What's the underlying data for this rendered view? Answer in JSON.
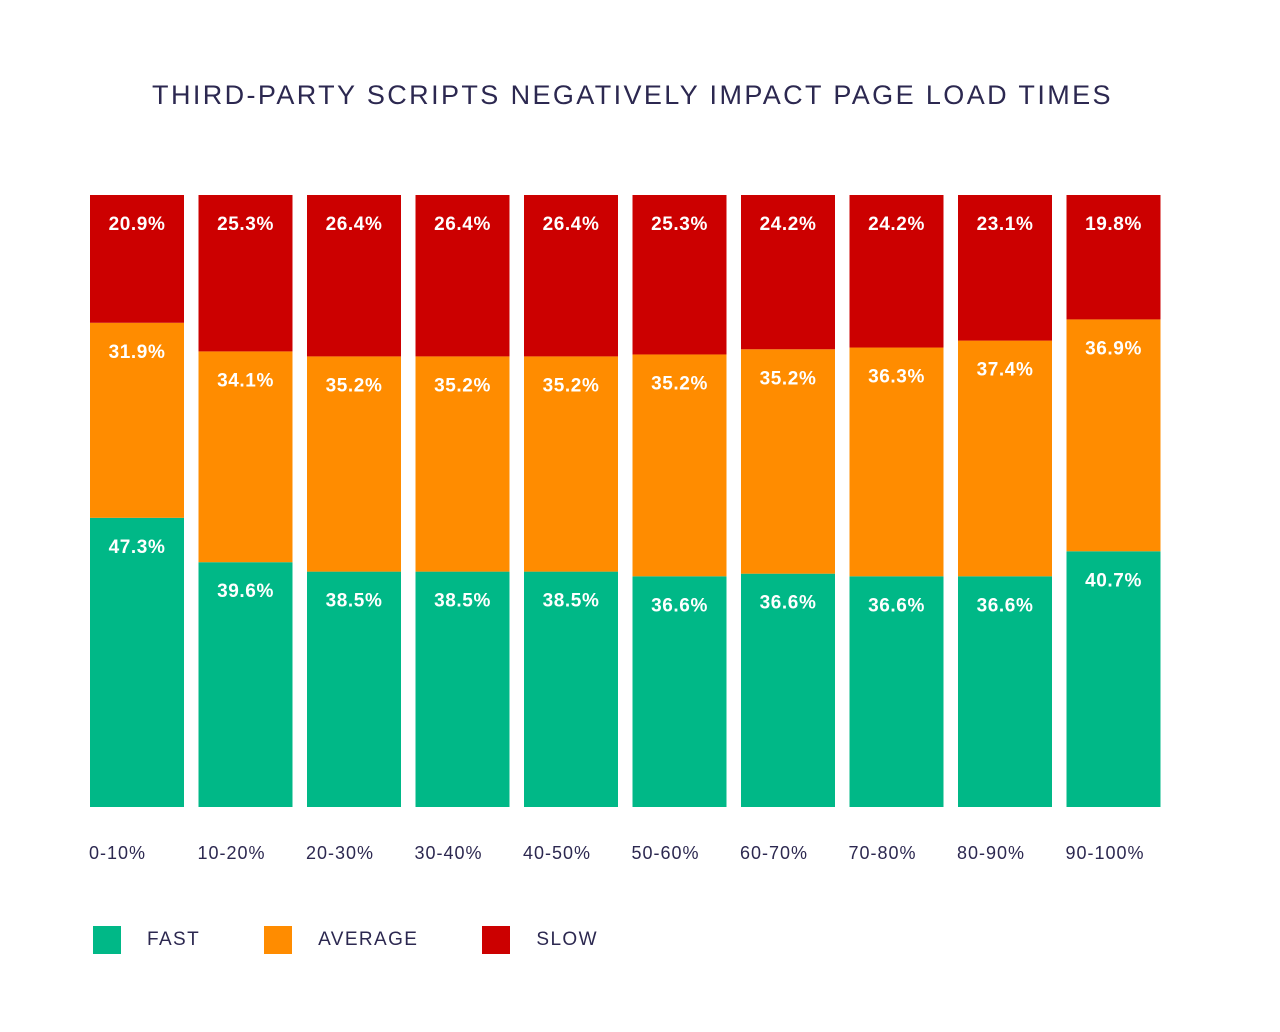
{
  "chart_data": {
    "type": "bar",
    "stacked": true,
    "title": "THIRD-PARTY SCRIPTS NEGATIVELY IMPACT PAGE LOAD TIMES",
    "xlabel": "",
    "ylabel": "",
    "ylim": [
      0,
      100
    ],
    "grid": false,
    "legend_position": "bottom-left",
    "categories": [
      "0-10%",
      "10-20%",
      "20-30%",
      "30-40%",
      "40-50%",
      "50-60%",
      "60-70%",
      "70-80%",
      "80-90%",
      "90-100%"
    ],
    "series": [
      {
        "name": "FAST",
        "color": "#00b887",
        "values": [
          47.3,
          39.6,
          38.5,
          38.5,
          38.5,
          36.6,
          36.6,
          36.6,
          36.6,
          40.7
        ],
        "labels": [
          "47.3%",
          "39.6%",
          "38.5%",
          "38.5%",
          "38.5%",
          "36.6%",
          "36.6%",
          "36.6%",
          "36.6%",
          "40.7%"
        ]
      },
      {
        "name": "AVERAGE",
        "color": "#ff8c00",
        "values": [
          31.9,
          34.1,
          35.2,
          35.2,
          35.2,
          35.2,
          35.2,
          36.3,
          37.4,
          36.9
        ],
        "labels": [
          "31.9%",
          "34.1%",
          "35.2%",
          "35.2%",
          "35.2%",
          "35.2%",
          "35.2%",
          "36.3%",
          "37.4%",
          "36.9%"
        ]
      },
      {
        "name": "SLOW",
        "color": "#cc0000",
        "values": [
          20.9,
          25.3,
          26.4,
          26.4,
          26.4,
          25.3,
          24.2,
          24.2,
          23.1,
          19.8
        ],
        "labels": [
          "20.9%",
          "25.3%",
          "26.4%",
          "26.4%",
          "26.4%",
          "25.3%",
          "24.2%",
          "24.2%",
          "23.1%",
          "19.8%"
        ]
      }
    ]
  }
}
